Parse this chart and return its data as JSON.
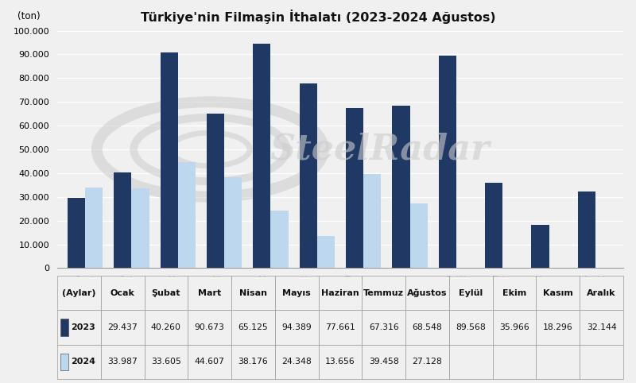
{
  "title": "Türkiye'nin Filmaşin İthalatı (2023-2024 Ağustos)",
  "ylabel": "(ton)",
  "xlabel": "(Aylar)",
  "months": [
    "Ocak",
    "Şubat",
    "Mart",
    "Nisan",
    "Mayıs",
    "Haziran",
    "Temmuz",
    "Ağustos",
    "Eylül",
    "Ekim",
    "Kasım",
    "Aralık"
  ],
  "data_2023": [
    29437,
    40260,
    90673,
    65125,
    94389,
    77661,
    67316,
    68548,
    89568,
    35966,
    18296,
    32144
  ],
  "data_2024": [
    33987,
    33605,
    44607,
    38176,
    24348,
    13656,
    39458,
    27128,
    null,
    null,
    null,
    null
  ],
  "color_2023": "#1F3864",
  "color_2024": "#BDD7EE",
  "background_color": "#F0F0F0",
  "ylim": [
    0,
    100000
  ],
  "yticks": [
    0,
    10000,
    20000,
    30000,
    40000,
    50000,
    60000,
    70000,
    80000,
    90000,
    100000
  ],
  "ytick_labels": [
    "0",
    "10.000",
    "20.000",
    "30.000",
    "40.000",
    "50.000",
    "60.000",
    "70.000",
    "80.000",
    "90.000",
    "100.000"
  ],
  "watermark_text": "SteelRadar",
  "legend_2023": "2023",
  "legend_2024": "2024",
  "table_row_2023": [
    "29.437",
    "40.260",
    "90.673",
    "65.125",
    "94.389",
    "77.661",
    "67.316",
    "68.548",
    "89.568",
    "35.966",
    "18.296",
    "32.144"
  ],
  "table_row_2024": [
    "33.987",
    "33.605",
    "44.607",
    "38.176",
    "24.348",
    "13.656",
    "39.458",
    "27.128",
    "",
    "",
    "",
    ""
  ]
}
